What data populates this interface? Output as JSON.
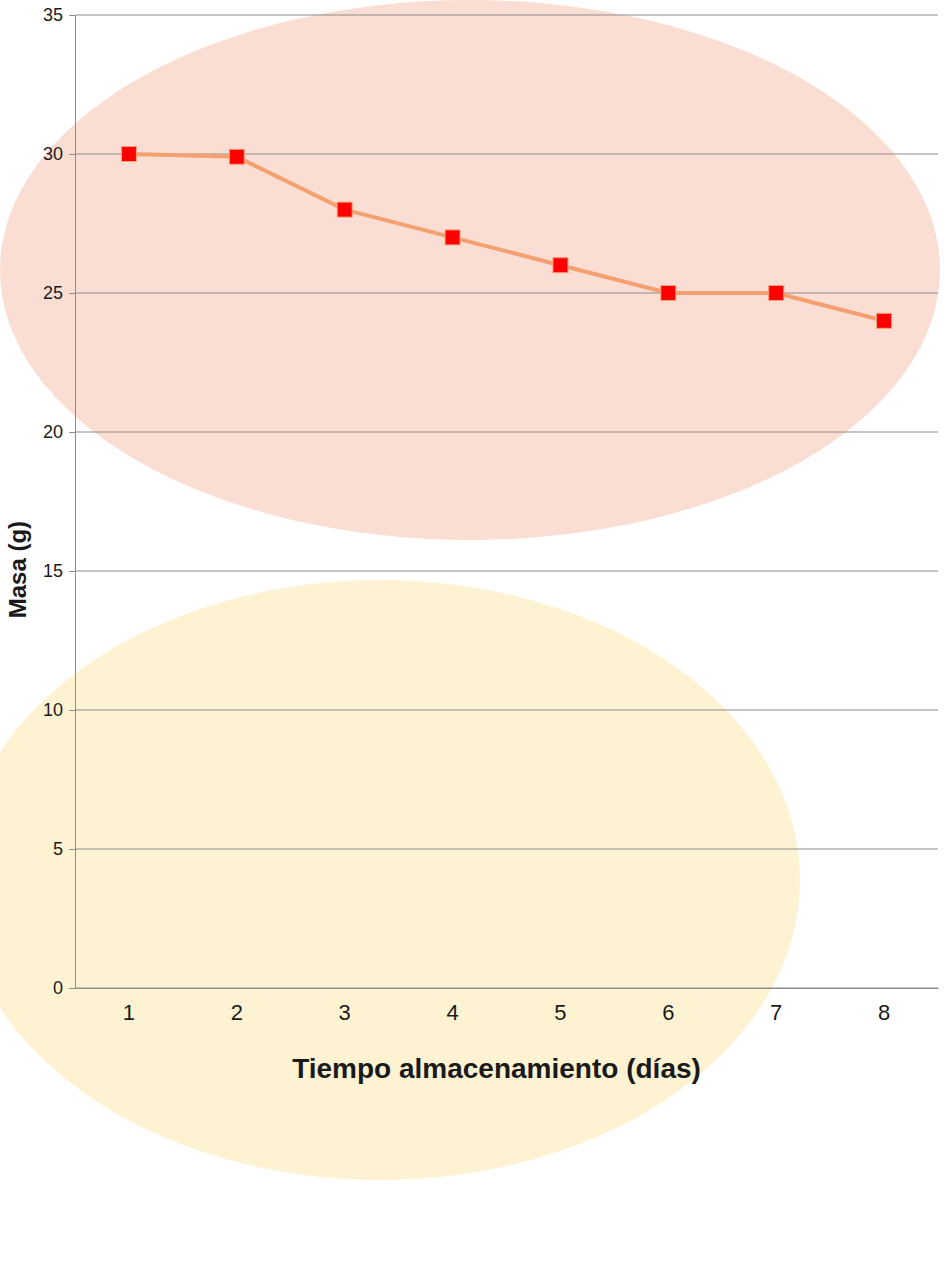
{
  "chart_data": {
    "type": "line",
    "x_label": "Tiempo almacenamiento (días)",
    "y_label": "Masa (g)",
    "categories": [
      "1",
      "2",
      "3",
      "4",
      "5",
      "6",
      "7",
      "8"
    ],
    "values": [
      30,
      29.9,
      28,
      27,
      26,
      25,
      25,
      24
    ],
    "color": "#f5a070",
    "marker": "square",
    "ylim": [
      0,
      35
    ],
    "yticks": [
      0,
      5,
      10,
      15,
      20,
      25,
      30,
      35
    ],
    "grid": true
  }
}
